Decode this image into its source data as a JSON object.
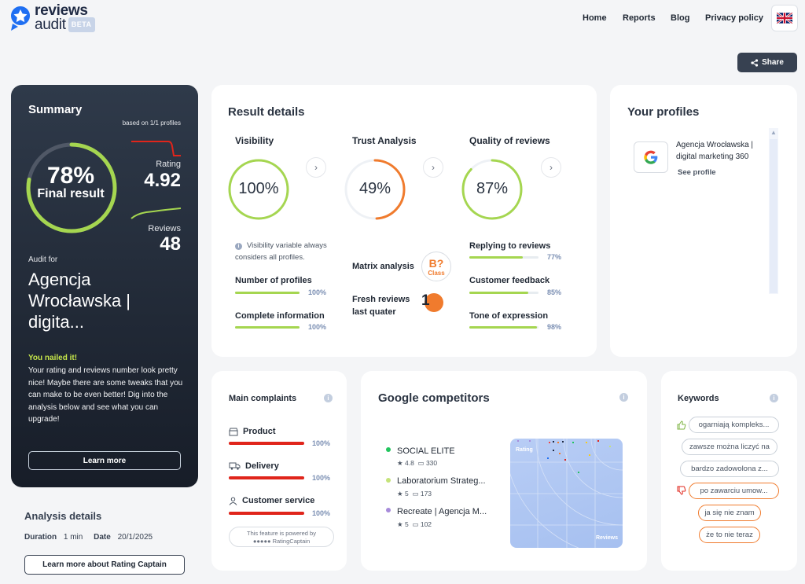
{
  "header": {
    "logo_line1": "reviews",
    "logo_line2": "audit",
    "beta": "BETA",
    "nav": [
      "Home",
      "Reports",
      "Blog",
      "Privacy policy"
    ],
    "share": "Share"
  },
  "summary": {
    "title": "Summary",
    "based_on": "based on 1/1 profiles",
    "final_pct": "78%",
    "final_label": "Final result",
    "final_fraction": 0.78,
    "rating_label": "Rating",
    "rating_value": "4.92",
    "reviews_label": "Reviews",
    "reviews_value": "48",
    "audit_for": "Audit for",
    "company": "Agencja Wrocławska | digita...",
    "headline": "You nailed it!",
    "message": "Your rating and reviews number look pretty nice! Maybe there are some tweaks that you can make to be even better! Dig into the analysis below and see what you can upgrade!",
    "learn_more": "Learn more"
  },
  "analysis": {
    "title": "Analysis details",
    "duration_label": "Duration",
    "duration_value": "1 min",
    "date_label": "Date",
    "date_value": "20/1/2025",
    "button": "Learn more about Rating Captain"
  },
  "result_details": {
    "title": "Result details",
    "visibility": {
      "title": "Visibility",
      "value": "100%",
      "fraction": 1.0,
      "note": "Visibility variable always considers all profiles.",
      "metrics": [
        {
          "label": "Number of profiles",
          "value": "100%",
          "fraction": 1.0
        },
        {
          "label": "Complete information",
          "value": "100%",
          "fraction": 1.0
        }
      ]
    },
    "trust": {
      "title": "Trust Analysis",
      "value": "49%",
      "fraction": 0.49,
      "matrix_label": "Matrix analysis",
      "class_grade": "B?",
      "class_label": "Class",
      "fresh_label": "Fresh reviews last quater",
      "fresh_value": "1"
    },
    "quality": {
      "title": "Quality of reviews",
      "value": "87%",
      "fraction": 0.87,
      "metrics": [
        {
          "label": "Replying to reviews",
          "value": "77%",
          "fraction": 0.77
        },
        {
          "label": "Customer feedback",
          "value": "85%",
          "fraction": 0.85
        },
        {
          "label": "Tone of expression",
          "value": "98%",
          "fraction": 0.98
        }
      ]
    }
  },
  "profiles": {
    "title": "Your profiles",
    "items": [
      {
        "name": "Agencja Wrocławska | digital marketing 360",
        "link": "See profile",
        "icon": "google-icon"
      }
    ]
  },
  "complaints": {
    "title": "Main complaints",
    "items": [
      {
        "label": "Product",
        "value": "100%",
        "fraction": 1.0,
        "icon": "box-icon"
      },
      {
        "label": "Delivery",
        "value": "100%",
        "fraction": 1.0,
        "icon": "truck-icon"
      },
      {
        "label": "Customer service",
        "value": "100%",
        "fraction": 1.0,
        "icon": "person-icon"
      }
    ],
    "powered_line1": "This feature is powered by",
    "powered_line2": "RatingCaptain"
  },
  "competitors": {
    "title": "Google competitors",
    "items": [
      {
        "name": "SOCIAL ELITE",
        "rating": "4.8",
        "reviews": "330",
        "color": "#22c55e"
      },
      {
        "name": "Laboratorium Strateg...",
        "rating": "5",
        "reviews": "173",
        "color": "#c5e37a"
      },
      {
        "name": "Recreate | Agencja M...",
        "rating": "5",
        "reviews": "102",
        "color": "#a78bda"
      }
    ],
    "plot_y_label": "Rating",
    "plot_x_label": "Reviews"
  },
  "keywords": {
    "title": "Keywords",
    "positive": [
      "ogarniają kompleks...",
      "zawsze można liczyć na",
      "bardzo zadowolona z..."
    ],
    "negative": [
      "po zawarciu umow...",
      "ja się nie znam",
      "że to nie teraz"
    ]
  },
  "colors": {
    "accent_green": "#a5d650",
    "accent_orange": "#f07b2d",
    "complaint_red": "#e0251b",
    "dark_panel": "#1f2733"
  }
}
